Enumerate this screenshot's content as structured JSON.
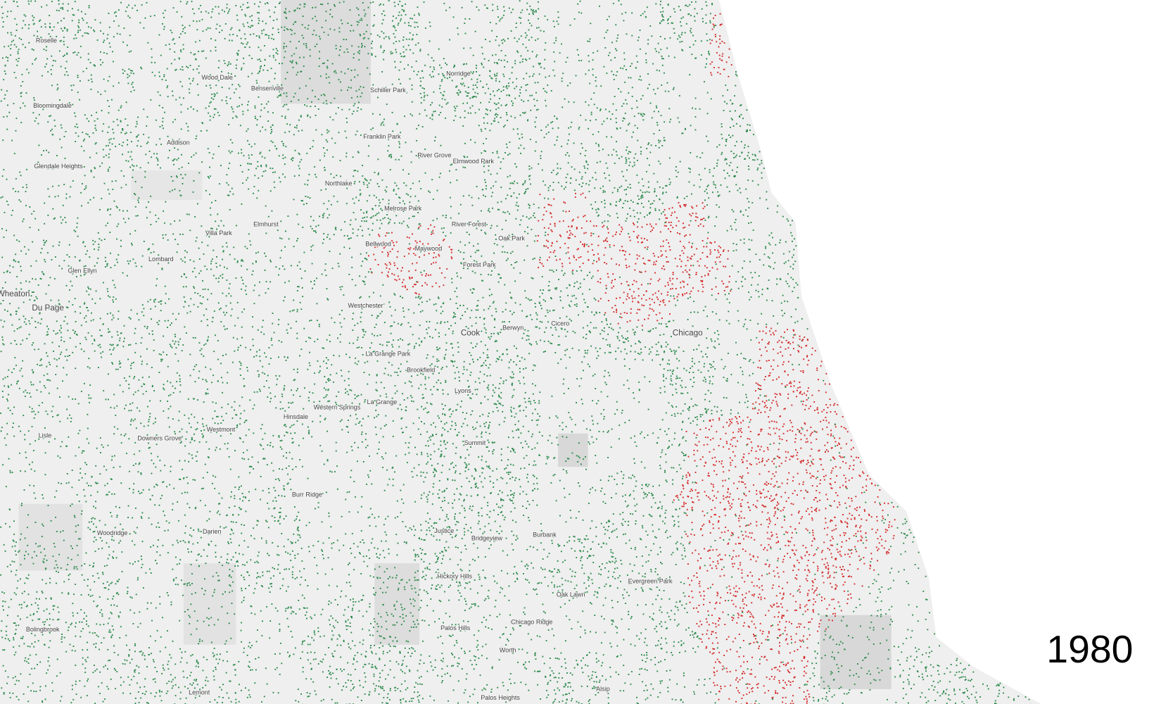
{
  "places": [
    "Roselle",
    "Wood Dale",
    "Bensenville",
    "Norridge",
    "Schiller Park",
    "Bloomingdale",
    "Addison",
    "Franklin Park",
    "River Grove",
    "Elmwood Park",
    "Glendale Heights",
    "Northlake",
    "Melrose Park",
    "River Forest",
    "Oak Park",
    "Bellwood",
    "Maywood",
    "Elmhurst",
    "Villa Park",
    "Lombard",
    "Forest Park",
    "Glen Ellyn",
    "Wheaton",
    "Du Page",
    "Westchester",
    "Cook",
    "Berwyn",
    "Cicero",
    "Chicago",
    "La Grange Park",
    "Brookfield",
    "Lyons",
    "Western Springs",
    "La Grange",
    "Hinsdale",
    "Lisle",
    "Downers Grove",
    "Westmont",
    "Summit",
    "Burr Ridge",
    "Woodridge",
    "Darien",
    "Justice",
    "Bridgeview",
    "Burbank",
    "Hickory Hills",
    "Oak Lawn",
    "Evergreen Park",
    "Chicago Ridge",
    "Palos Hills",
    "Worth",
    "Bolingbrook",
    "Alsip",
    "Lemont",
    "Palos Heights"
  ],
  "year": "1980"
}
